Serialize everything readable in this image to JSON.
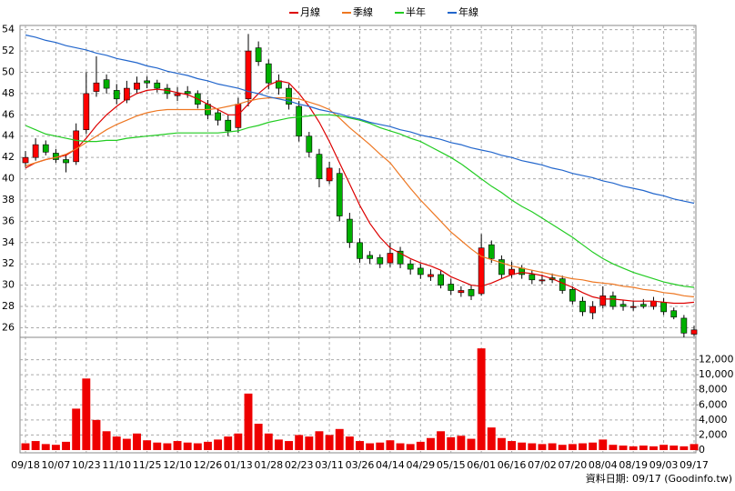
{
  "chart_data": [
    {
      "type": "candlestick",
      "categories": [
        "09/18",
        null,
        null,
        "10/07",
        null,
        null,
        "10/23",
        null,
        null,
        "11/10",
        null,
        null,
        "11/25",
        null,
        null,
        "12/10",
        null,
        null,
        "12/26",
        null,
        null,
        "01/13",
        null,
        null,
        "01/28",
        null,
        null,
        "02/23",
        null,
        null,
        "03/11",
        null,
        null,
        "03/26",
        null,
        null,
        "04/14",
        null,
        null,
        "04/29",
        null,
        null,
        "05/15",
        null,
        null,
        "06/01",
        null,
        null,
        "06/16",
        null,
        null,
        "07/02",
        null,
        null,
        "07/20",
        null,
        null,
        "08/04",
        null,
        null,
        "08/19",
        null,
        null,
        "09/03",
        null,
        null,
        "09/17"
      ],
      "open": [
        41.5,
        42,
        43.2,
        42.4,
        41.8,
        41.6,
        44.6,
        48.2,
        49.3,
        48.3,
        47.4,
        48.4,
        49.2,
        49,
        48.5,
        47.8,
        48.2,
        48,
        47,
        46.2,
        45.5,
        44.8,
        47.5,
        52.3,
        50.8,
        49.2,
        48.5,
        46.8,
        44,
        42.3,
        39.8,
        40.5,
        36.2,
        34,
        32.8,
        32.6,
        32.1,
        33.2,
        32,
        31.6,
        30.8,
        31,
        30.1,
        29.3,
        29.6,
        29.2,
        33.8,
        32.4,
        31,
        31.6,
        31,
        30.4,
        30.7,
        30.6,
        29.6,
        28.5,
        27.4,
        28.1,
        29,
        28.2,
        27.9,
        28.2,
        28,
        28.4,
        27.6,
        26.9,
        25.4
      ],
      "high": [
        42.6,
        43.8,
        43.6,
        42.8,
        42.3,
        45.2,
        50,
        51.5,
        49.8,
        48.9,
        49.2,
        49.6,
        49.6,
        49.3,
        48.9,
        48.6,
        48.7,
        48.3,
        47.4,
        46.6,
        46,
        47.6,
        53.6,
        52.9,
        51.2,
        49.8,
        48.9,
        47.3,
        44.4,
        42.8,
        41.6,
        41,
        36.8,
        34.4,
        33.2,
        32.9,
        34,
        33.6,
        32.4,
        32,
        31.5,
        31.4,
        30.6,
        29.9,
        30,
        34.8,
        34.2,
        32.8,
        32.2,
        31.9,
        31.4,
        31,
        31.1,
        30.9,
        29.9,
        28.9,
        28.5,
        29.9,
        29.4,
        28.6,
        28.5,
        28.7,
        28.9,
        28.8,
        27.9,
        27.2,
        26.2
      ],
      "low": [
        41.1,
        41.7,
        42.2,
        41.5,
        40.6,
        41.3,
        44.2,
        47.7,
        48,
        47,
        47.1,
        48,
        48.5,
        48.1,
        47.5,
        47.3,
        47.6,
        46.6,
        45.6,
        45,
        44,
        44.3,
        46.8,
        50.6,
        48.4,
        47.9,
        46.5,
        43.5,
        42,
        39.2,
        39.5,
        36,
        33.5,
        32.1,
        32,
        31.6,
        31.7,
        31.6,
        31,
        30.6,
        30.4,
        29.7,
        29.1,
        28.9,
        28.6,
        29,
        32.1,
        30.6,
        30.7,
        30.6,
        30.1,
        30.1,
        30.2,
        29.2,
        28.2,
        27.1,
        26.8,
        27.8,
        27.7,
        27.6,
        27.6,
        27.8,
        27.7,
        27.2,
        26.8,
        25.1,
        25.2
      ],
      "close": [
        42,
        43.2,
        42.5,
        41.8,
        41.5,
        44.5,
        48,
        49,
        48.5,
        47.5,
        48.5,
        49,
        49,
        48.5,
        48,
        48,
        48,
        47,
        46,
        45.5,
        44.5,
        47,
        52,
        51,
        49,
        48.5,
        47,
        44,
        42.5,
        40,
        41,
        36.5,
        34,
        32.5,
        32.5,
        32,
        33,
        32,
        31.5,
        31,
        31,
        30,
        29.5,
        29.5,
        29,
        33.5,
        32.5,
        31,
        31.5,
        31,
        30.5,
        30.5,
        30.5,
        29.5,
        28.5,
        27.5,
        28,
        29,
        28,
        28,
        28,
        28,
        28.5,
        27.5,
        27,
        25.5,
        25.8
      ],
      "up_color": "#ff0000",
      "down_color": "#00b000",
      "series": [
        {
          "name": "月線",
          "color": "#dd0000",
          "values": [
            41,
            41.5,
            41.8,
            42,
            42.2,
            42.8,
            43.8,
            45,
            46,
            46.8,
            47.5,
            48,
            48.3,
            48.4,
            48.3,
            48.1,
            47.9,
            47.5,
            47,
            46.5,
            46,
            46,
            47,
            48,
            48.8,
            49.2,
            49,
            48,
            46.8,
            45.3,
            43.5,
            41.5,
            39.5,
            37.5,
            35.8,
            34.5,
            33.5,
            33,
            32.5,
            32.1,
            31.8,
            31.4,
            30.8,
            30.4,
            30,
            29.9,
            30.2,
            30.6,
            31,
            31.2,
            31.1,
            30.9,
            30.6,
            30.2,
            29.8,
            29.3,
            28.9,
            28.7,
            28.7,
            28.6,
            28.5,
            28.5,
            28.5,
            28.4,
            28.3,
            28.3,
            28.4
          ]
        },
        {
          "name": "季線",
          "color": "#ee7722",
          "values": [
            41.2,
            41.5,
            41.8,
            42,
            42.3,
            42.8,
            43.4,
            44,
            44.6,
            45.1,
            45.5,
            45.9,
            46.2,
            46.4,
            46.5,
            46.5,
            46.5,
            46.5,
            46.5,
            46.6,
            46.8,
            47,
            47.3,
            47.5,
            47.6,
            47.6,
            47.6,
            47.5,
            47.2,
            46.9,
            46.5,
            45.7,
            44.8,
            44,
            43.2,
            42.3,
            41.5,
            40.3,
            39.1,
            38,
            37,
            36,
            35,
            34.2,
            33.4,
            32.7,
            32.4,
            32.1,
            31.8,
            31.6,
            31.4,
            31.2,
            31,
            30.8,
            30.6,
            30.5,
            30.3,
            30.2,
            30.1,
            29.9,
            29.8,
            29.6,
            29.5,
            29.3,
            29.2,
            29,
            28.9
          ]
        },
        {
          "name": "半年",
          "color": "#22cc22",
          "values": [
            45,
            44.6,
            44.2,
            44,
            43.8,
            43.6,
            43.5,
            43.5,
            43.6,
            43.6,
            43.8,
            43.9,
            44,
            44.1,
            44.2,
            44.3,
            44.3,
            44.3,
            44.3,
            44.3,
            44.4,
            44.5,
            44.8,
            45,
            45.3,
            45.5,
            45.7,
            45.8,
            45.9,
            46,
            46,
            45.9,
            45.7,
            45.5,
            45.2,
            44.8,
            44.5,
            44.2,
            43.8,
            43.5,
            43,
            42.5,
            42,
            41.4,
            40.7,
            40,
            39.3,
            38.7,
            38,
            37.4,
            36.9,
            36.3,
            35.7,
            35.1,
            34.5,
            33.8,
            33.1,
            32.5,
            32,
            31.6,
            31.2,
            30.9,
            30.6,
            30.3,
            30.1,
            29.9,
            29.8
          ]
        },
        {
          "name": "年線",
          "color": "#2266cc",
          "values": [
            53.5,
            53.3,
            53,
            52.8,
            52.5,
            52.3,
            52.1,
            51.8,
            51.6,
            51.3,
            51.1,
            50.9,
            50.6,
            50.4,
            50.1,
            49.9,
            49.7,
            49.4,
            49.2,
            48.9,
            48.7,
            48.5,
            48.2,
            48,
            47.7,
            47.5,
            47.3,
            47,
            46.8,
            46.5,
            46.3,
            46.1,
            45.8,
            45.6,
            45.3,
            45.1,
            44.9,
            44.6,
            44.4,
            44.1,
            43.9,
            43.7,
            43.4,
            43.2,
            42.9,
            42.7,
            42.5,
            42.2,
            42,
            41.7,
            41.5,
            41.3,
            41,
            40.8,
            40.5,
            40.3,
            40.1,
            39.8,
            39.6,
            39.3,
            39.1,
            38.9,
            38.6,
            38.4,
            38.1,
            37.9,
            37.7
          ]
        }
      ],
      "ylim": [
        25.1,
        54.4
      ],
      "yticks": [
        26,
        28,
        30,
        32,
        34,
        36,
        38,
        40,
        42,
        44,
        46,
        48,
        50,
        52,
        54
      ],
      "grid": true,
      "note": "資料日期: 09/17 (Goodinfo.tw)"
    },
    {
      "type": "bar",
      "color": "#ee0000",
      "values": [
        900,
        1200,
        800,
        700,
        1100,
        5500,
        9500,
        4000,
        2500,
        1800,
        1500,
        2200,
        1300,
        1000,
        900,
        1200,
        1000,
        900,
        1100,
        1400,
        1800,
        2200,
        7500,
        3500,
        2200,
        1400,
        1200,
        2000,
        1800,
        2500,
        2000,
        2800,
        1800,
        1200,
        900,
        1000,
        1300,
        900,
        800,
        1100,
        1600,
        2500,
        1700,
        1900,
        1500,
        13500,
        3000,
        1600,
        1200,
        1000,
        900,
        800,
        900,
        700,
        800,
        900,
        1000,
        1400,
        700,
        600,
        500,
        600,
        500,
        700,
        600,
        500,
        800
      ],
      "y2lim": [
        0,
        14000
      ],
      "y2ticks": [
        0,
        {
          "value": 2000,
          "label": "2,000"
        },
        {
          "value": 4000,
          "label": "4,000"
        },
        {
          "value": 6000,
          "label": "6,000"
        },
        {
          "value": 8000,
          "label": "8,000"
        },
        {
          "value": 10000,
          "label": "10,000"
        },
        {
          "value": 12000,
          "label": "12,000"
        }
      ]
    }
  ]
}
